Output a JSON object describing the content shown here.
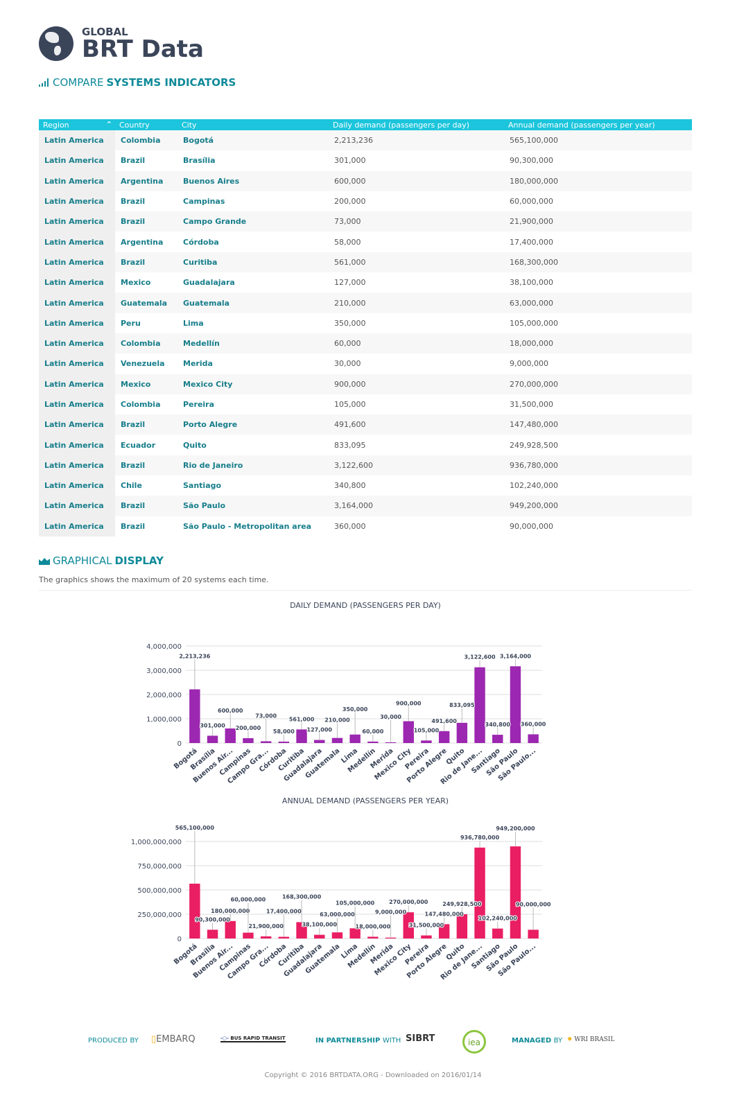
{
  "header": {
    "logo_small": "GLOBAL",
    "logo_big": "BRT Data",
    "section1_light": "COMPARE",
    "section1_bold": "SYSTEMS INDICATORS"
  },
  "table": {
    "columns": [
      "Region",
      "Country",
      "City",
      "Daily demand (passengers per day)",
      "Annual demand (passengers per year)"
    ],
    "rows": [
      [
        "Latin America",
        "Colombia",
        "Bogotá",
        "2,213,236",
        "565,100,000"
      ],
      [
        "Latin America",
        "Brazil",
        "Brasília",
        "301,000",
        "90,300,000"
      ],
      [
        "Latin America",
        "Argentina",
        "Buenos Aires",
        "600,000",
        "180,000,000"
      ],
      [
        "Latin America",
        "Brazil",
        "Campinas",
        "200,000",
        "60,000,000"
      ],
      [
        "Latin America",
        "Brazil",
        "Campo Grande",
        "73,000",
        "21,900,000"
      ],
      [
        "Latin America",
        "Argentina",
        "Córdoba",
        "58,000",
        "17,400,000"
      ],
      [
        "Latin America",
        "Brazil",
        "Curitiba",
        "561,000",
        "168,300,000"
      ],
      [
        "Latin America",
        "Mexico",
        "Guadalajara",
        "127,000",
        "38,100,000"
      ],
      [
        "Latin America",
        "Guatemala",
        "Guatemala",
        "210,000",
        "63,000,000"
      ],
      [
        "Latin America",
        "Peru",
        "Lima",
        "350,000",
        "105,000,000"
      ],
      [
        "Latin America",
        "Colombia",
        "Medellín",
        "60,000",
        "18,000,000"
      ],
      [
        "Latin America",
        "Venezuela",
        "Merida",
        "30,000",
        "9,000,000"
      ],
      [
        "Latin America",
        "Mexico",
        "Mexico City",
        "900,000",
        "270,000,000"
      ],
      [
        "Latin America",
        "Colombia",
        "Pereira",
        "105,000",
        "31,500,000"
      ],
      [
        "Latin America",
        "Brazil",
        "Porto Alegre",
        "491,600",
        "147,480,000"
      ],
      [
        "Latin America",
        "Ecuador",
        "Quito",
        "833,095",
        "249,928,500"
      ],
      [
        "Latin America",
        "Brazil",
        "Rio de Janeiro",
        "3,122,600",
        "936,780,000"
      ],
      [
        "Latin America",
        "Chile",
        "Santiago",
        "340,800",
        "102,240,000"
      ],
      [
        "Latin America",
        "Brazil",
        "São Paulo",
        "3,164,000",
        "949,200,000"
      ],
      [
        "Latin America",
        "Brazil",
        "São Paulo - Metropolitan area",
        "360,000",
        "90,000,000"
      ]
    ]
  },
  "graphical": {
    "title_light": "GRAPHICAL",
    "title_bold": "DISPLAY",
    "note": "The graphics shows the maximum of 20 systems each time."
  },
  "chart_data": [
    {
      "type": "bar",
      "title": "DAILY DEMAND (PASSENGERS PER DAY)",
      "color": "#9c27b0",
      "ylim": [
        0,
        4000000
      ],
      "yticks": [
        "0",
        "1,000,000",
        "2,000,000",
        "3,000,000",
        "4,000,000"
      ],
      "categories": [
        "Bogotá",
        "Brasília",
        "Buenos Air...",
        "Campinas",
        "Campo Gra...",
        "Córdoba",
        "Curitiba",
        "Guadalajara",
        "Guatemala",
        "Lima",
        "Medellín",
        "Merida",
        "Mexico City",
        "Pereira",
        "Porto Alegre",
        "Quito",
        "Rio de Jane...",
        "Santiago",
        "São Paulo",
        "São Paulo..."
      ],
      "values": [
        2213236,
        301000,
        600000,
        200000,
        73000,
        58000,
        561000,
        127000,
        210000,
        350000,
        60000,
        30000,
        900000,
        105000,
        491600,
        833095,
        3122600,
        340800,
        3164000,
        360000
      ]
    },
    {
      "type": "bar",
      "title": "ANNUAL DEMAND (PASSENGERS PER YEAR)",
      "color": "#e91e63",
      "ylim": [
        0,
        1000000000
      ],
      "yticks": [
        "0",
        "250,000,000",
        "500,000,000",
        "750,000,000",
        "1,000,000,000"
      ],
      "categories": [
        "Bogotá",
        "Brasília",
        "Buenos Air...",
        "Campinas",
        "Campo Gra...",
        "Córdoba",
        "Curitiba",
        "Guadalajara",
        "Guatemala",
        "Lima",
        "Medellín",
        "Merida",
        "Mexico City",
        "Pereira",
        "Porto Alegre",
        "Quito",
        "Rio de Jane...",
        "Santiago",
        "São Paulo",
        "São Paulo..."
      ],
      "values": [
        565100000,
        90300000,
        180000000,
        60000000,
        21900000,
        17400000,
        168300000,
        38100000,
        63000000,
        105000000,
        18000000,
        9000000,
        270000000,
        31500000,
        147480000,
        249928500,
        936780000,
        102240000,
        949200000,
        90000000
      ]
    }
  ],
  "footer": {
    "produced_light": "PRODUCED",
    "produced_by": "BY",
    "embarq": "EMBARQ",
    "brt": "BUS RAPID TRANSIT",
    "partner_bold": "IN PARTNERSHIP",
    "partner_light": "WITH",
    "sibrt": "SIBRT",
    "iea": "iea",
    "managed_bold": "MANAGED",
    "managed_light": "BY",
    "wri": "WRI BRASIL",
    "copyright": "Copyright © 2016 BRTDATA.ORG - Downloaded on 2016/01/14"
  }
}
